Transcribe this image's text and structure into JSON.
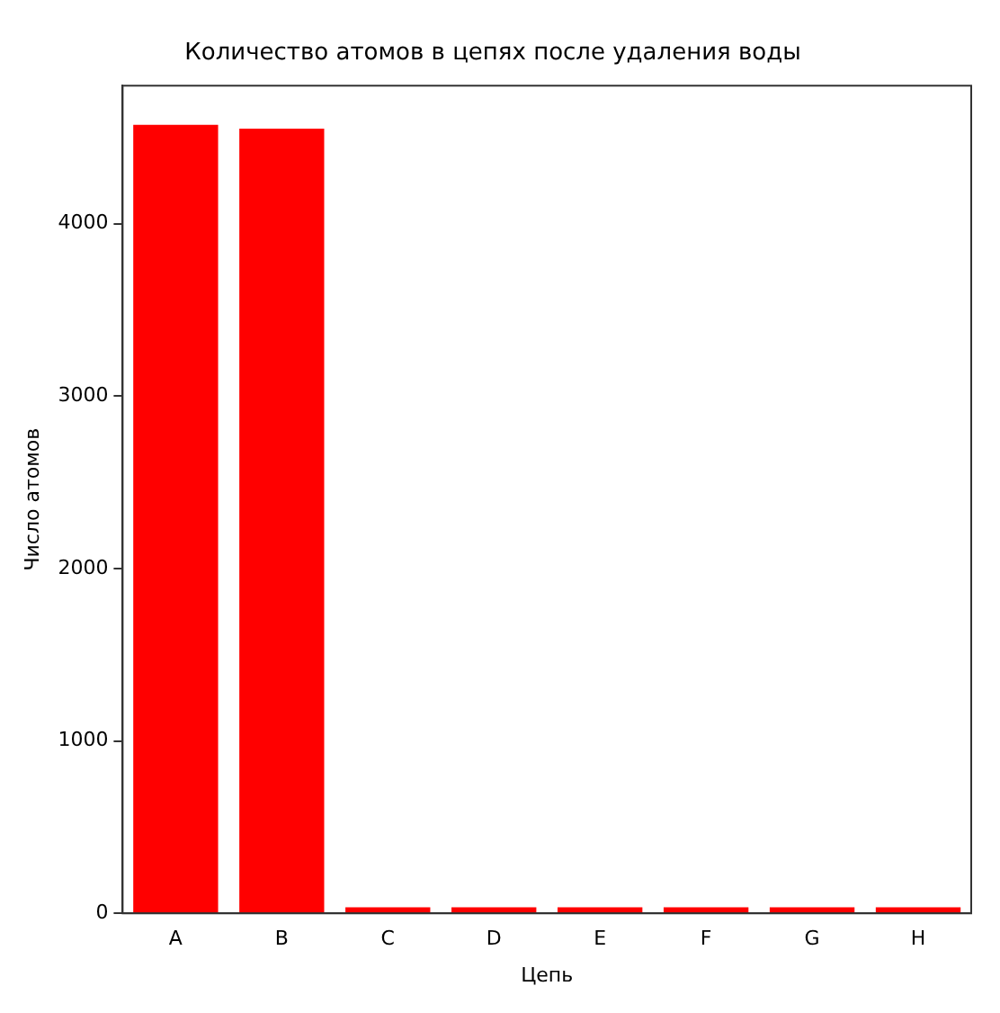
{
  "chart_data": {
    "type": "bar",
    "title": "Количество атомов в цепях после удаления воды",
    "xlabel": "Цепь",
    "ylabel": "Число атомов",
    "categories": [
      "A",
      "B",
      "C",
      "D",
      "E",
      "F",
      "G",
      "H"
    ],
    "values": [
      4573,
      4550,
      35,
      35,
      35,
      35,
      35,
      35
    ],
    "color": "#ff0000",
    "ylim": [
      0,
      4800
    ],
    "yticks": [
      0,
      1000,
      2000,
      3000,
      4000
    ],
    "grid": false,
    "legend": false
  }
}
